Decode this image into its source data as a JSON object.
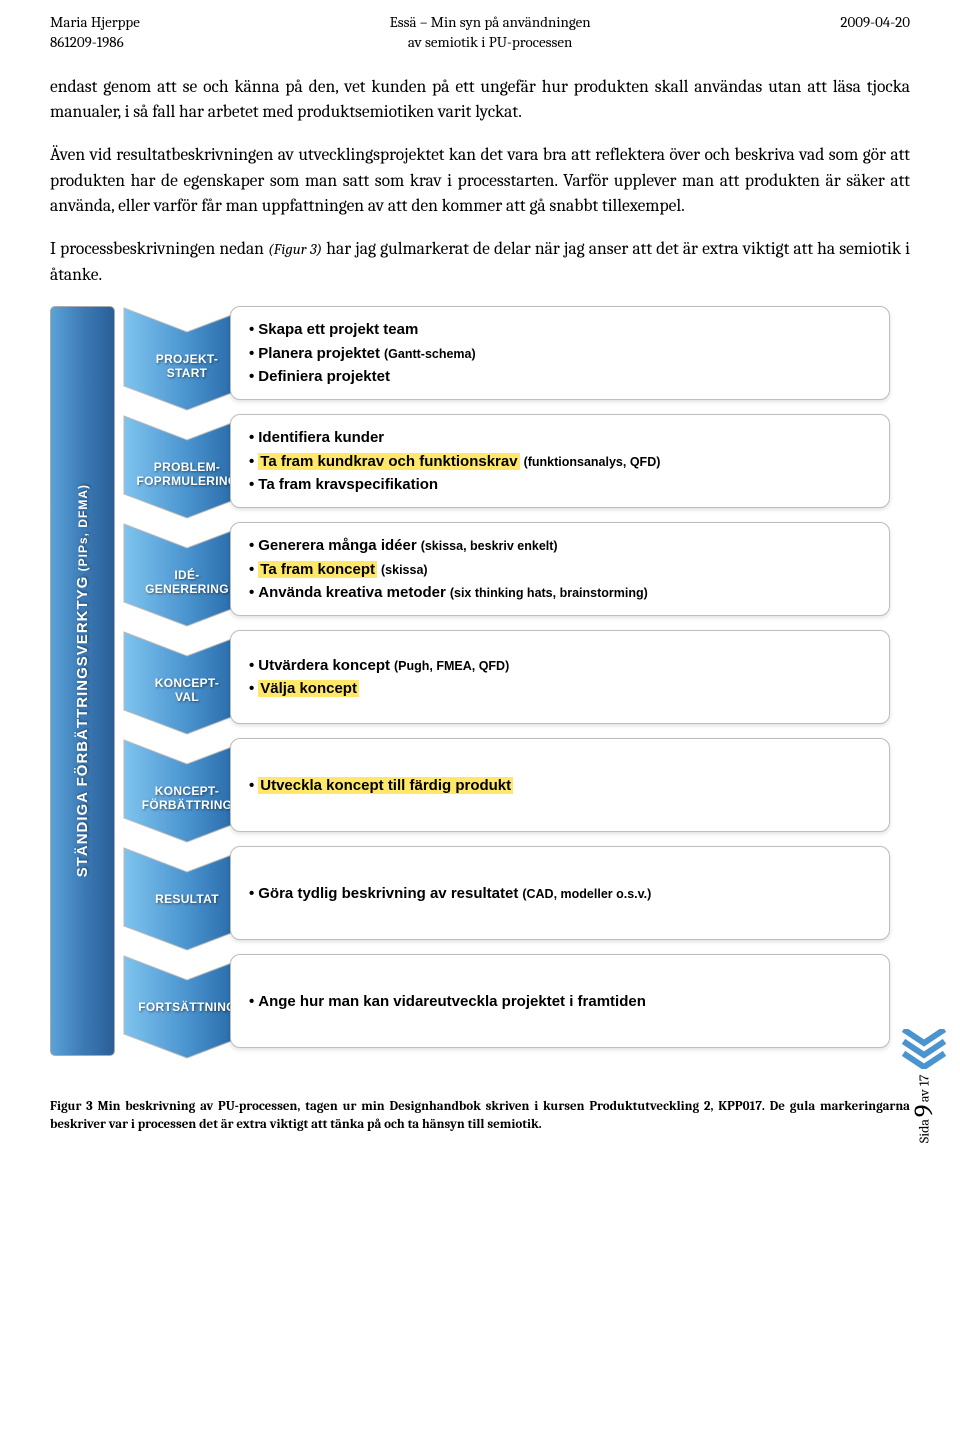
{
  "header": {
    "left_name": "Maria Hjerppe",
    "left_id": "861209-1986",
    "center_line1": "Essä – Min syn på användningen",
    "center_line2": "av semiotik i PU-processen",
    "right_date": "2009-04-20"
  },
  "paragraphs": {
    "p1": "endast genom att se och känna på den, vet kunden på ett ungefär hur produkten skall användas utan att läsa tjocka manualer, i så fall har arbetet med produktsemiotiken varit lyckat.",
    "p2": "Även vid resultatbeskrivningen av utvecklingsprojektet kan det vara bra att reflektera över och beskriva vad som gör att produkten har de egenskaper som man satt som krav i processtarten. Varför upplever man att produkten är säker att använda, eller varför får man uppfattningen av att den kommer att gå snabbt tillexempel.",
    "p3a": "I processbeskrivningen nedan ",
    "p3_ref": "(Figur 3)",
    "p3b": " har jag gulmarkerat de delar när jag anser att det är extra viktigt att ha semiotik i åtanke."
  },
  "diagram": {
    "sidebar_main": "STÄNDIGA FÖRBÄTTRINGSVERKTYG",
    "sidebar_sub": " (PIPs, DFMA)",
    "colors": {
      "grad_light": "#7fc4ef",
      "grad_mid": "#4a94cf",
      "grad_dark": "#1e5e9c",
      "highlight": "#ffe76a",
      "box_border": "#bdbdbd",
      "text_white": "#ffffff"
    },
    "stages": [
      {
        "label": "PROJEKT-\nSTART"
      },
      {
        "label": "PROBLEM-\nFOPRMULERING"
      },
      {
        "label": "IDÉ-\nGENERERING"
      },
      {
        "label": "KONCEPT-\nVAL"
      },
      {
        "label": "KONCEPT-\nFÖRBÄTTRING"
      },
      {
        "label": "RESULTAT"
      },
      {
        "label": "FORTSÄTTNING"
      }
    ],
    "boxes": [
      {
        "items": [
          {
            "text": "Skapa ett projekt team"
          },
          {
            "text": "Planera projektet",
            "note": "(Gantt-schema)"
          },
          {
            "text": "Definiera projektet"
          }
        ]
      },
      {
        "items": [
          {
            "text": "Identifiera kunder"
          },
          {
            "text": "Ta fram kundkrav och funktionskrav",
            "highlight": true,
            "note": "(funktionsanalys, QFD)"
          },
          {
            "text": "Ta fram kravspecifikation"
          }
        ]
      },
      {
        "items": [
          {
            "text": "Generera många idéer",
            "note": "(skissa, beskriv enkelt)"
          },
          {
            "text": "Ta fram koncept",
            "highlight": true,
            "note": "(skissa)"
          },
          {
            "text": "Använda kreativa metoder",
            "note": "(six thinking hats, brainstorming)"
          }
        ]
      },
      {
        "items": [
          {
            "text": "Utvärdera koncept",
            "note": "(Pugh, FMEA, QFD)"
          },
          {
            "text": "Välja koncept",
            "highlight": true
          }
        ]
      },
      {
        "items": [
          {
            "text": "Utveckla koncept till färdig produkt",
            "highlight": true
          }
        ]
      },
      {
        "items": [
          {
            "text": "Göra tydlig beskrivning av resultatet",
            "note": "(CAD, modeller o.s.v.)"
          }
        ]
      },
      {
        "items": [
          {
            "text": "Ange hur man kan vidareutveckla projektet i framtiden"
          }
        ]
      }
    ]
  },
  "caption": "Figur 3 Min beskrivning av PU-processen, tagen ur min Designhandbok skriven i kursen Produktutveckling 2, KPP017. De gula markeringarna beskriver var i processen det är extra viktigt att tänka på och ta hänsyn till semiotik.",
  "page": {
    "sida": "Sida",
    "num": "9",
    "av": "av 17",
    "chevron_color": "#4a94cf"
  }
}
